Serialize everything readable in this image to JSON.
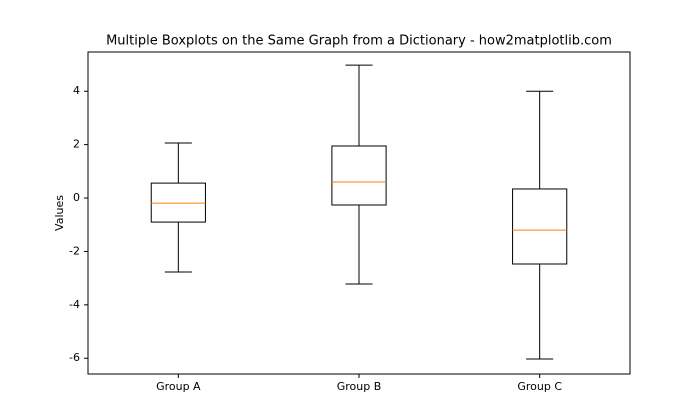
{
  "chart_data": {
    "type": "box",
    "title": "Multiple Boxplots on the Same Graph from a Dictionary - how2matplotlib.com",
    "ylabel": "Values",
    "categories": [
      "Group A",
      "Group B",
      "Group C"
    ],
    "whisker_low": [
      -2.77,
      -3.22,
      -6.03
    ],
    "q1": [
      -0.9,
      -0.26,
      -2.47
    ],
    "median": [
      -0.19,
      0.6,
      -1.2
    ],
    "q3": [
      0.56,
      1.95,
      0.34
    ],
    "whisker_high": [
      2.06,
      4.98,
      4.0
    ],
    "color": "#000000",
    "median_color": "#ff7f0e",
    "ylim": [
      -6.59,
      5.47
    ],
    "yticks": [
      -6,
      -4,
      -2,
      0,
      2,
      4
    ]
  }
}
